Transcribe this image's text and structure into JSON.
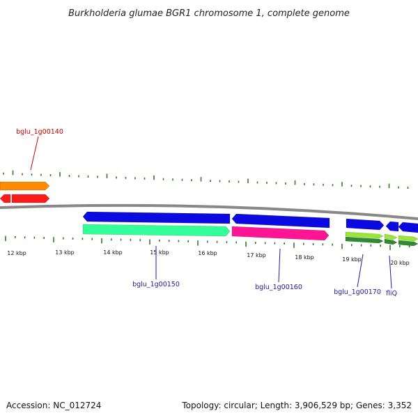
{
  "title": "Burkholderia glumae BGR1 chromosome 1, complete genome",
  "footer": {
    "accession": "Accession: NC_012724",
    "summary": "Topology: circular; Length: 3,906,529 bp; Genes: 3,352"
  },
  "colors": {
    "backbone": "#808080",
    "ticks": "#2e7d1e",
    "label_red": "#cc0000",
    "label_blue": "#1a1aa0"
  },
  "scale_labels": [
    "12 kbp",
    "13 kbp",
    "14 kbp",
    "15 kbp",
    "16 kbp",
    "17 kbp",
    "18 kbp",
    "19 kbp",
    "20 kbp"
  ],
  "gene_labels": [
    {
      "text": "bglu_1g00140",
      "color": "#cc0000"
    },
    {
      "text": "bglu_1g00150",
      "color": "#1a1aa0"
    },
    {
      "text": "bglu_1g00160",
      "color": "#1a1aa0"
    },
    {
      "text": "bglu_1g00170",
      "color": "#1a1aa0"
    },
    {
      "text": "fliQ",
      "color": "#1a1aa0"
    }
  ],
  "features": [
    {
      "track": "upper",
      "color": "#ff8c00",
      "strand": "+"
    },
    {
      "track": "upper",
      "color": "#ff1a1a",
      "strand": "-"
    },
    {
      "track": "upper",
      "color": "#ff1a1a",
      "strand": "+"
    },
    {
      "track": "lower",
      "color": "#0a0ae0",
      "strand": "-"
    },
    {
      "track": "lower",
      "color": "#33ff99",
      "strand": "+"
    },
    {
      "track": "lower",
      "color": "#0a0ae0",
      "strand": "-"
    },
    {
      "track": "lower",
      "color": "#ff1493",
      "strand": "+"
    },
    {
      "track": "lower",
      "color": "#0a0ae0",
      "strand": "+"
    },
    {
      "track": "lower",
      "color": "#99e633",
      "strand": "+"
    },
    {
      "track": "lower",
      "color": "#2e8b2e",
      "strand": "+"
    },
    {
      "track": "lower",
      "color": "#0a0ae0",
      "strand": "-"
    },
    {
      "track": "lower",
      "color": "#99e633",
      "strand": "+"
    },
    {
      "track": "lower",
      "color": "#2e8b2e",
      "strand": "+"
    },
    {
      "track": "lower",
      "color": "#0a0ae0",
      "strand": "-"
    },
    {
      "track": "lower",
      "color": "#99e633",
      "strand": "+"
    },
    {
      "track": "lower",
      "color": "#2e8b2e",
      "strand": "+"
    }
  ]
}
